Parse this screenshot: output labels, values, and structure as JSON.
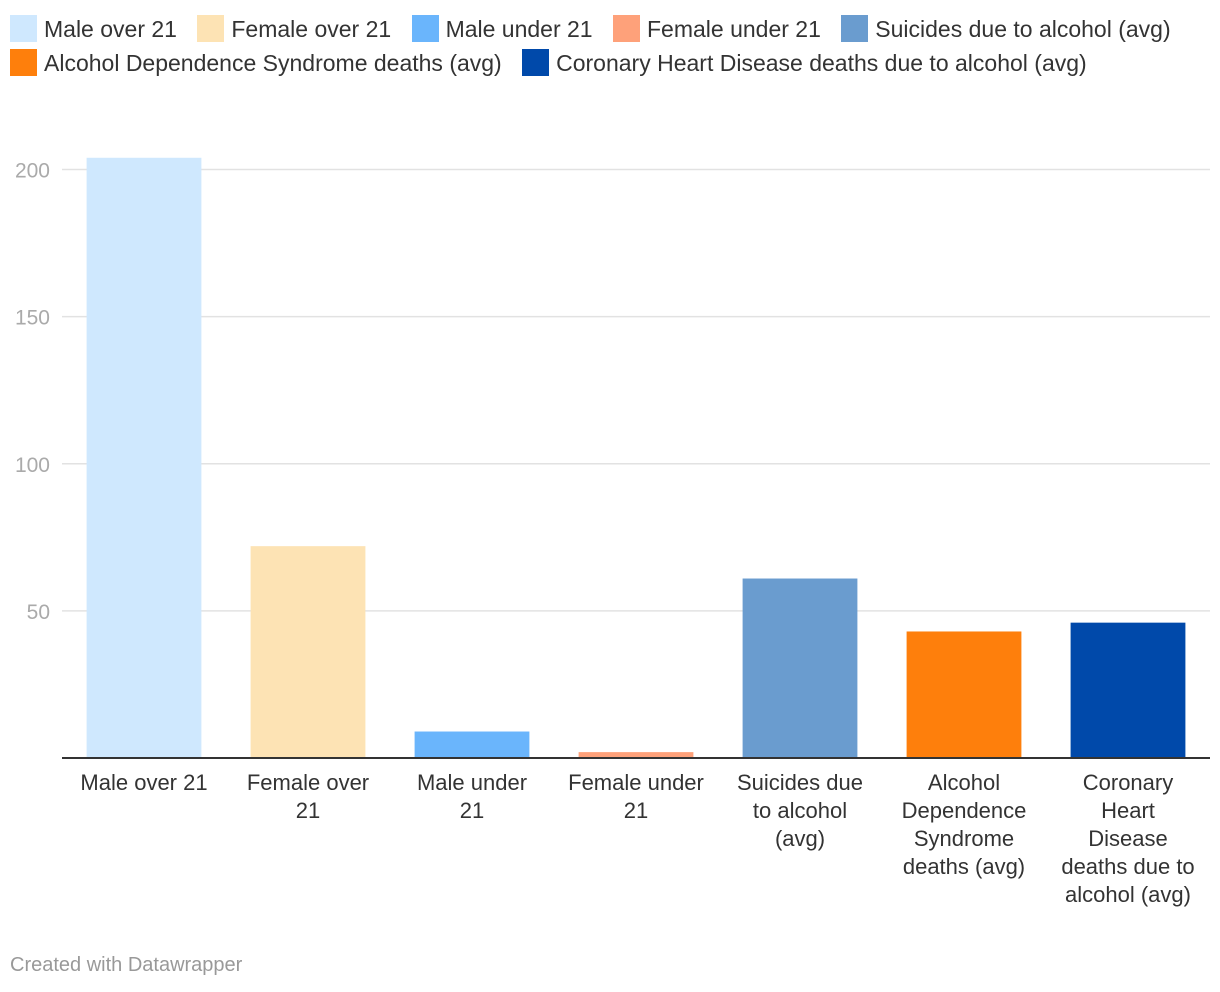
{
  "chart_data": {
    "type": "bar",
    "categories": [
      "Male over 21",
      "Female over 21",
      "Male under 21",
      "Female under 21",
      "Suicides due to alcohol (avg)",
      "Alcohol Dependence Syndrome deaths (avg)",
      "Coronary Heart Disease deaths due to alcohol (avg)"
    ],
    "category_label_lines": [
      [
        "Male over 21"
      ],
      [
        "Female over",
        "21"
      ],
      [
        "Male under",
        "21"
      ],
      [
        "Female under",
        "21"
      ],
      [
        "Suicides due",
        "to alcohol",
        "(avg)"
      ],
      [
        "Alcohol",
        "Dependence",
        "Syndrome",
        "deaths (avg)"
      ],
      [
        "Coronary",
        "Heart",
        "Disease",
        "deaths due to",
        "alcohol (avg)"
      ]
    ],
    "values": [
      204,
      72,
      9,
      2,
      61,
      43,
      46
    ],
    "colors": [
      "#cfe8fe",
      "#fde3b4",
      "#6ab5fc",
      "#fea17a",
      "#6a9ccf",
      "#fe7f0c",
      "#0049aa"
    ],
    "yticks": [
      50,
      100,
      150,
      200
    ],
    "ylim": [
      0,
      208
    ],
    "grid": true,
    "legend_position": "top"
  },
  "legend": [
    {
      "label": "Male over 21",
      "color": "#cfe8fe"
    },
    {
      "label": "Female over 21",
      "color": "#fde3b4"
    },
    {
      "label": "Male under 21",
      "color": "#6ab5fc"
    },
    {
      "label": "Female under 21",
      "color": "#fea17a"
    },
    {
      "label": "Suicides due to alcohol (avg)",
      "color": "#6a9ccf"
    },
    {
      "label": "Alcohol Dependence Syndrome deaths (avg)",
      "color": "#fe7f0c"
    },
    {
      "label": "Coronary Heart Disease deaths due to alcohol (avg)",
      "color": "#0049aa"
    }
  ],
  "footer": "Created with Datawrapper"
}
